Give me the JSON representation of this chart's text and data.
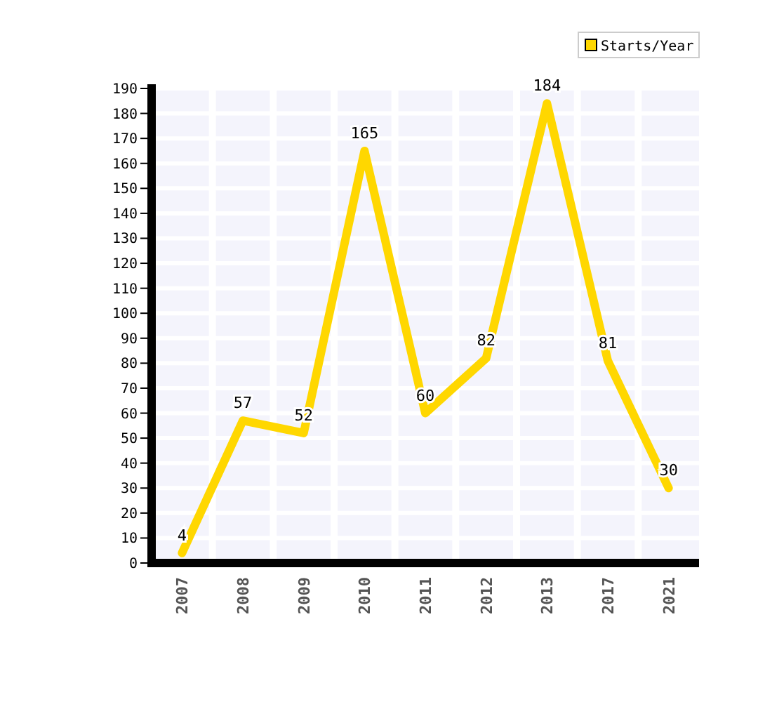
{
  "chart_data": {
    "type": "line",
    "categories": [
      "2007",
      "2008",
      "2009",
      "2010",
      "2011",
      "2012",
      "2013",
      "2017",
      "2021"
    ],
    "series": [
      {
        "name": "Starts/Year",
        "color": "#ffd700",
        "values": [
          4,
          57,
          52,
          165,
          60,
          82,
          184,
          81,
          30
        ]
      }
    ],
    "data_labels": true,
    "ylim": [
      0,
      190
    ],
    "yticks": [
      0,
      10,
      20,
      30,
      40,
      50,
      60,
      70,
      80,
      90,
      100,
      110,
      120,
      130,
      140,
      150,
      160,
      170,
      180,
      190
    ],
    "grid": true,
    "legend": "top right",
    "marker": "none",
    "line_style": "solid"
  }
}
